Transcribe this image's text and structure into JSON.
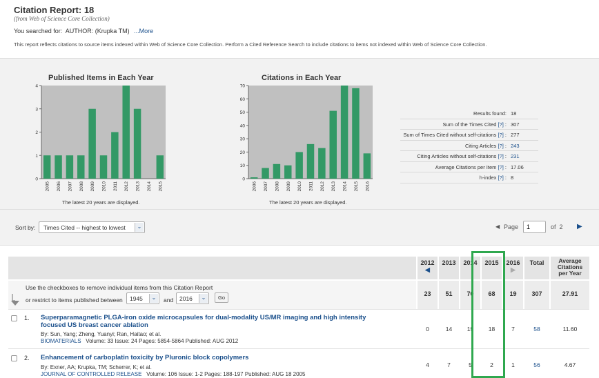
{
  "header": {
    "title": "Citation Report: 18",
    "subtitle": "(from Web of Science Core Collection)",
    "searched_prefix": "You searched for:",
    "searched_query": "AUTHOR: (Krupka TM)",
    "more_link": "...More",
    "note": "This report reflects citations to source items indexed within Web of Science Core Collection. Perform a Cited Reference Search to include citations to items not indexed within Web of Science Core Collection."
  },
  "charts": {
    "published": {
      "title": "Published Items in Each Year",
      "note": "The latest 20 years are displayed."
    },
    "citations": {
      "title": "Citations in Each Year",
      "note": "The latest 20 years are displayed."
    },
    "bar_color": "#339966",
    "plot_bg": "#c0c0c0"
  },
  "chart_data": [
    {
      "type": "bar",
      "title": "Published Items in Each Year",
      "categories": [
        "2005",
        "2006",
        "2007",
        "2008",
        "2009",
        "2010",
        "2011",
        "2012",
        "2013",
        "2014",
        "2015"
      ],
      "values": [
        1,
        1,
        1,
        1,
        3,
        1,
        2,
        4,
        3,
        0,
        1
      ],
      "ylim": [
        0,
        4
      ],
      "yticks": [
        0,
        1,
        2,
        3,
        4
      ],
      "grid": false
    },
    {
      "type": "bar",
      "title": "Citations in Each Year",
      "categories": [
        "2006",
        "2007",
        "2008",
        "2009",
        "2010",
        "2011",
        "2012",
        "2013",
        "2014",
        "2015",
        "2016"
      ],
      "values": [
        1,
        8,
        11,
        10,
        20,
        26,
        23,
        51,
        70,
        68,
        19
      ],
      "ylim": [
        0,
        70
      ],
      "yticks": [
        0,
        10,
        20,
        30,
        40,
        50,
        60,
        70
      ],
      "grid": false
    }
  ],
  "stats": [
    {
      "label": "Results found:",
      "help": "",
      "value": "18",
      "link": false
    },
    {
      "label": "Sum of the Times Cited",
      "help": "[?]",
      "value": "307",
      "link": false
    },
    {
      "label": "Sum of Times Cited without self-citations",
      "help": "[?]",
      "value": "277",
      "link": false
    },
    {
      "label": "Citing Articles",
      "help": "[?]",
      "value": "243",
      "link": true
    },
    {
      "label": "Citing Articles without self-citations",
      "help": "[?]",
      "value": "231",
      "link": true
    },
    {
      "label": "Average Citations per Item",
      "help": "[?]",
      "value": "17.06",
      "link": false
    },
    {
      "label": "h-index",
      "help": "[?]",
      "value": "8",
      "link": false
    }
  ],
  "sort": {
    "label": "Sort by:",
    "value": "Times Cited -- highest to lowest"
  },
  "pager": {
    "page_label": "Page",
    "current": "1",
    "of_label": "of",
    "total": "2"
  },
  "filter": {
    "line1": "Use the checkboxes to remove individual items from this Citation Report",
    "line2": "or restrict to items published between",
    "from_year": "1945",
    "and_label": "and",
    "to_year": "2016",
    "go": "Go"
  },
  "columns": {
    "years": [
      "2012",
      "2013",
      "2014",
      "2015",
      "2016"
    ],
    "total_label": "Total",
    "avg_label": "Average Citations per Year",
    "summary": [
      "23",
      "51",
      "70",
      "68",
      "19",
      "307",
      "27.91"
    ]
  },
  "records": [
    {
      "num": "1.",
      "title": "Superparamagnetic PLGA-iron oxide microcapsules for dual-modality US/MR imaging and high intensity focused US breast cancer ablation",
      "authors": "By: Sun, Yang; Zheng, Yuanyi; Ran, Haitao; et al.",
      "journal": "BIOMATERIALS",
      "details": "Volume: 33   Issue: 24   Pages: 5854-5864   Published: AUG 2012",
      "cites": [
        "0",
        "14",
        "19",
        "18",
        "7"
      ],
      "total": "58",
      "avg": "11.60"
    },
    {
      "num": "2.",
      "title": "Enhancement of carboplatin toxicity by Pluronic block copolymers",
      "authors": "By: Exner, AA; Krupka, TM; Scherrer, K; et al.",
      "journal": "JOURNAL OF CONTROLLED RELEASE",
      "details": "Volume: 106   Issue: 1-2   Pages: 188-197   Published: AUG 18 2005",
      "cites": [
        "4",
        "7",
        "5",
        "2",
        "1"
      ],
      "total": "56",
      "avg": "4.67"
    }
  ],
  "highlight_color": "#2fa84f"
}
